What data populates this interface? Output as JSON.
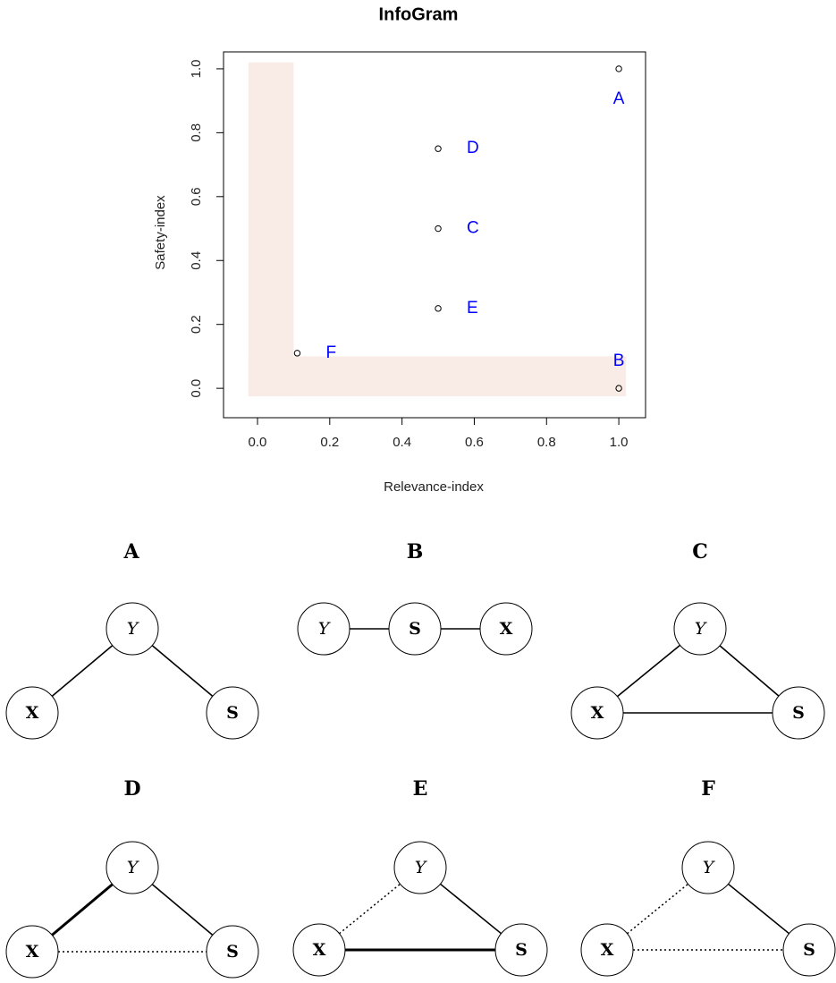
{
  "chart_data": {
    "type": "scatter",
    "title": "InfoGram",
    "x_label": "Relevance-index",
    "y_label": "Safety-index",
    "x": [
      1,
      1,
      0.5,
      0.5,
      0.5,
      0.11
    ],
    "values": [
      1,
      0,
      0.5,
      0.75,
      0.25,
      0.11
    ],
    "point_labels": [
      "A",
      "B",
      "C",
      "D",
      "E",
      "F"
    ],
    "label_pos": [
      "below",
      "above",
      "right",
      "right",
      "right",
      "right"
    ],
    "label_color": "#0000ff",
    "color": "#000000",
    "xlim": [
      -0.094,
      1.074
    ],
    "ylim": [
      -0.092,
      1.053
    ],
    "xticks": [
      {
        "value": 0,
        "label": "0.0"
      },
      0.2,
      0.4,
      0.6,
      0.8,
      {
        "value": 1,
        "label": "1.0"
      }
    ],
    "yticks": [
      {
        "value": 0,
        "label": "0.0"
      },
      0.2,
      0.4,
      0.6,
      0.8,
      {
        "value": 1,
        "label": "1.0"
      }
    ],
    "highlight": {
      "threshold": 0.1,
      "extent": [
        -0.025,
        1.02
      ],
      "color": "#f9ebe6"
    }
  },
  "diagrams": [
    {
      "title": "A",
      "nodes": [
        {
          "label": "Y",
          "font": "italic"
        },
        {
          "label": "X",
          "font": "bold"
        },
        {
          "label": "S",
          "font": "bold"
        }
      ],
      "edges": [
        {
          "between": [
            "X",
            "Y"
          ],
          "style": "solid"
        },
        {
          "between": [
            "Y",
            "S"
          ],
          "style": "solid"
        }
      ]
    },
    {
      "title": "B",
      "nodes": [
        {
          "label": "Y",
          "font": "italic"
        },
        {
          "label": "S",
          "font": "bold"
        },
        {
          "label": "X",
          "font": "bold"
        }
      ],
      "edges": [
        {
          "between": [
            "Y",
            "S"
          ],
          "style": "solid"
        },
        {
          "between": [
            "S",
            "X"
          ],
          "style": "solid"
        }
      ]
    },
    {
      "title": "C",
      "nodes": [
        {
          "label": "Y",
          "font": "italic"
        },
        {
          "label": "X",
          "font": "bold"
        },
        {
          "label": "S",
          "font": "bold"
        }
      ],
      "edges": [
        {
          "between": [
            "X",
            "Y"
          ],
          "style": "solid"
        },
        {
          "between": [
            "Y",
            "S"
          ],
          "style": "solid"
        },
        {
          "between": [
            "X",
            "S"
          ],
          "style": "solid"
        }
      ]
    },
    {
      "title": "D",
      "nodes": [
        {
          "label": "Y",
          "font": "italic"
        },
        {
          "label": "X",
          "font": "bold"
        },
        {
          "label": "S",
          "font": "bold"
        }
      ],
      "edges": [
        {
          "between": [
            "X",
            "Y"
          ],
          "style": "thick"
        },
        {
          "between": [
            "Y",
            "S"
          ],
          "style": "solid"
        },
        {
          "between": [
            "X",
            "S"
          ],
          "style": "dotted"
        }
      ]
    },
    {
      "title": "E",
      "nodes": [
        {
          "label": "Y",
          "font": "italic"
        },
        {
          "label": "X",
          "font": "bold"
        },
        {
          "label": "S",
          "font": "bold"
        }
      ],
      "edges": [
        {
          "between": [
            "X",
            "Y"
          ],
          "style": "dotted"
        },
        {
          "between": [
            "Y",
            "S"
          ],
          "style": "solid"
        },
        {
          "between": [
            "X",
            "S"
          ],
          "style": "thick"
        }
      ]
    },
    {
      "title": "F",
      "nodes": [
        {
          "label": "Y",
          "font": "italic"
        },
        {
          "label": "X",
          "font": "bold"
        },
        {
          "label": "S",
          "font": "bold"
        }
      ],
      "edges": [
        {
          "between": [
            "X",
            "Y"
          ],
          "style": "dotted"
        },
        {
          "between": [
            "Y",
            "S"
          ],
          "style": "solid"
        },
        {
          "between": [
            "X",
            "S"
          ],
          "style": "dotted"
        }
      ]
    }
  ]
}
